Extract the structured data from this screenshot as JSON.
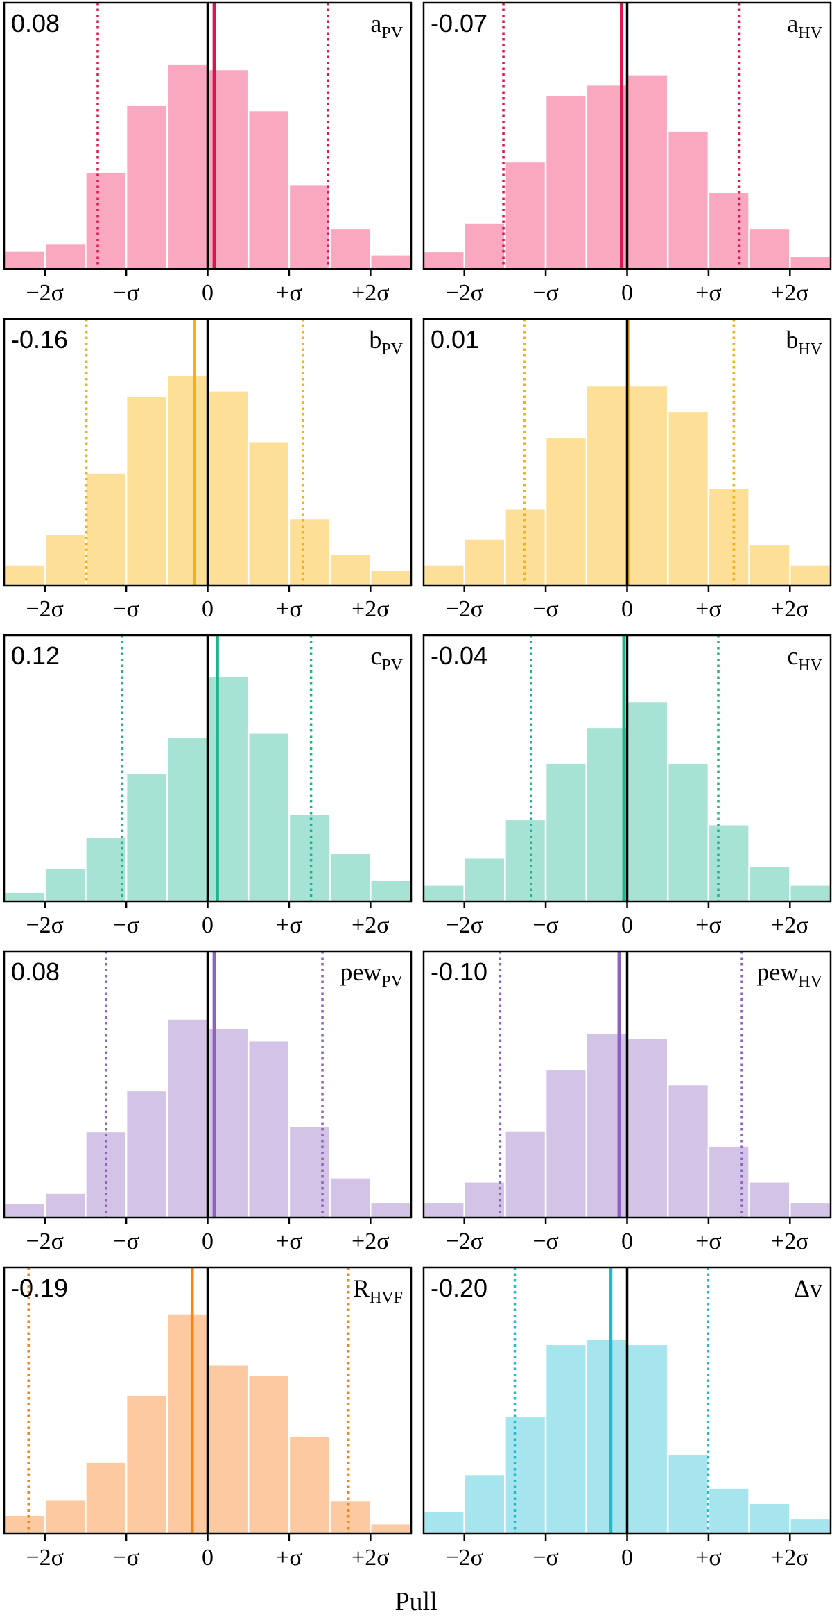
{
  "chart_data": {
    "type": "bar",
    "xlabel": "Pull",
    "xtick_labels": [
      "−2σ",
      "−σ",
      "0",
      "+σ",
      "+2σ"
    ],
    "xticks": [
      -2,
      -1,
      0,
      1,
      2
    ],
    "xlim": [
      -2.5,
      2.5
    ],
    "ylim": [
      0,
      0.52
    ],
    "bin_edges": [
      -2.5,
      -2.0,
      -1.5,
      -1.0,
      -0.5,
      0.0,
      0.5,
      1.0,
      1.5,
      2.0,
      2.5
    ],
    "panels": [
      {
        "name": "a_pv",
        "label_main": "a",
        "label_sub": "PV",
        "mean_label": "0.08",
        "color": "#f9a8bf",
        "line_color": "#e0144c",
        "values": [
          0.036,
          0.05,
          0.19,
          0.32,
          0.4,
          0.39,
          0.31,
          0.165,
          0.08,
          0.028
        ],
        "mean": 0.08,
        "sigma_lo": -1.35,
        "sigma_hi": 1.48
      },
      {
        "name": "a_hv",
        "label_main": "a",
        "label_sub": "HV",
        "mean_label": "-0.07",
        "color": "#f9a8bf",
        "line_color": "#e0144c",
        "values": [
          0.034,
          0.09,
          0.21,
          0.34,
          0.36,
          0.38,
          0.27,
          0.15,
          0.08,
          0.025
        ],
        "mean": -0.07,
        "sigma_lo": -1.52,
        "sigma_hi": 1.38
      },
      {
        "name": "b_pv",
        "label_main": "b",
        "label_sub": "PV",
        "mean_label": "-0.16",
        "color": "#fddf98",
        "line_color": "#f5b011",
        "values": [
          0.04,
          0.1,
          0.22,
          0.37,
          0.41,
          0.38,
          0.28,
          0.13,
          0.06,
          0.03
        ],
        "mean": -0.16,
        "sigma_lo": -1.49,
        "sigma_hi": 1.17
      },
      {
        "name": "b_hv",
        "label_main": "b",
        "label_sub": "HV",
        "mean_label": "0.01",
        "color": "#fddf98",
        "line_color": "#f5b011",
        "values": [
          0.04,
          0.09,
          0.15,
          0.29,
          0.39,
          0.39,
          0.34,
          0.19,
          0.08,
          0.04
        ],
        "mean": 0.01,
        "sigma_lo": -1.26,
        "sigma_hi": 1.31
      },
      {
        "name": "c_pv",
        "label_main": "c",
        "label_sub": "PV",
        "mean_label": "0.12",
        "color": "#a6e3d5",
        "line_color": "#1fb38b",
        "values": [
          0.018,
          0.065,
          0.125,
          0.25,
          0.32,
          0.44,
          0.33,
          0.17,
          0.095,
          0.042
        ],
        "mean": 0.12,
        "sigma_lo": -1.05,
        "sigma_hi": 1.27
      },
      {
        "name": "c_hv",
        "label_main": "c",
        "label_sub": "HV",
        "mean_label": "-0.04",
        "color": "#a6e3d5",
        "line_color": "#1fb38b",
        "values": [
          0.032,
          0.085,
          0.16,
          0.27,
          0.34,
          0.39,
          0.27,
          0.15,
          0.068,
          0.032
        ],
        "mean": -0.04,
        "sigma_lo": -1.18,
        "sigma_hi": 1.12
      },
      {
        "name": "pew_pv",
        "label_main": "pew",
        "label_sub": "PV",
        "mean_label": "0.08",
        "color": "#d3c3e6",
        "line_color": "#8e61c4",
        "values": [
          0.028,
          0.048,
          0.168,
          0.248,
          0.388,
          0.37,
          0.345,
          0.178,
          0.078,
          0.03
        ],
        "mean": 0.08,
        "sigma_lo": -1.25,
        "sigma_hi": 1.41
      },
      {
        "name": "pew_hv",
        "label_main": "pew",
        "label_sub": "HV",
        "mean_label": "-0.10",
        "color": "#d3c3e6",
        "line_color": "#8e61c4",
        "values": [
          0.03,
          0.07,
          0.17,
          0.29,
          0.36,
          0.35,
          0.26,
          0.14,
          0.07,
          0.03
        ],
        "mean": -0.1,
        "sigma_lo": -1.56,
        "sigma_hi": 1.41
      },
      {
        "name": "r_hvf",
        "label_main": "R",
        "label_sub": "HVF",
        "mean_label": "-0.19",
        "color": "#fdc9a0",
        "line_color": "#f58318",
        "values": [
          0.036,
          0.066,
          0.14,
          0.27,
          0.43,
          0.33,
          0.31,
          0.19,
          0.065,
          0.02
        ],
        "mean": -0.19,
        "sigma_lo": -2.2,
        "sigma_hi": 1.73
      },
      {
        "name": "delta_v",
        "label_main": "Δv",
        "label_sub": "",
        "mean_label": "-0.20",
        "color": "#a6e5ee",
        "line_color": "#1ebad2",
        "values": [
          0.045,
          0.115,
          0.23,
          0.37,
          0.38,
          0.37,
          0.155,
          0.09,
          0.06,
          0.03
        ],
        "mean": -0.2,
        "sigma_lo": -1.38,
        "sigma_hi": 0.99
      }
    ]
  }
}
